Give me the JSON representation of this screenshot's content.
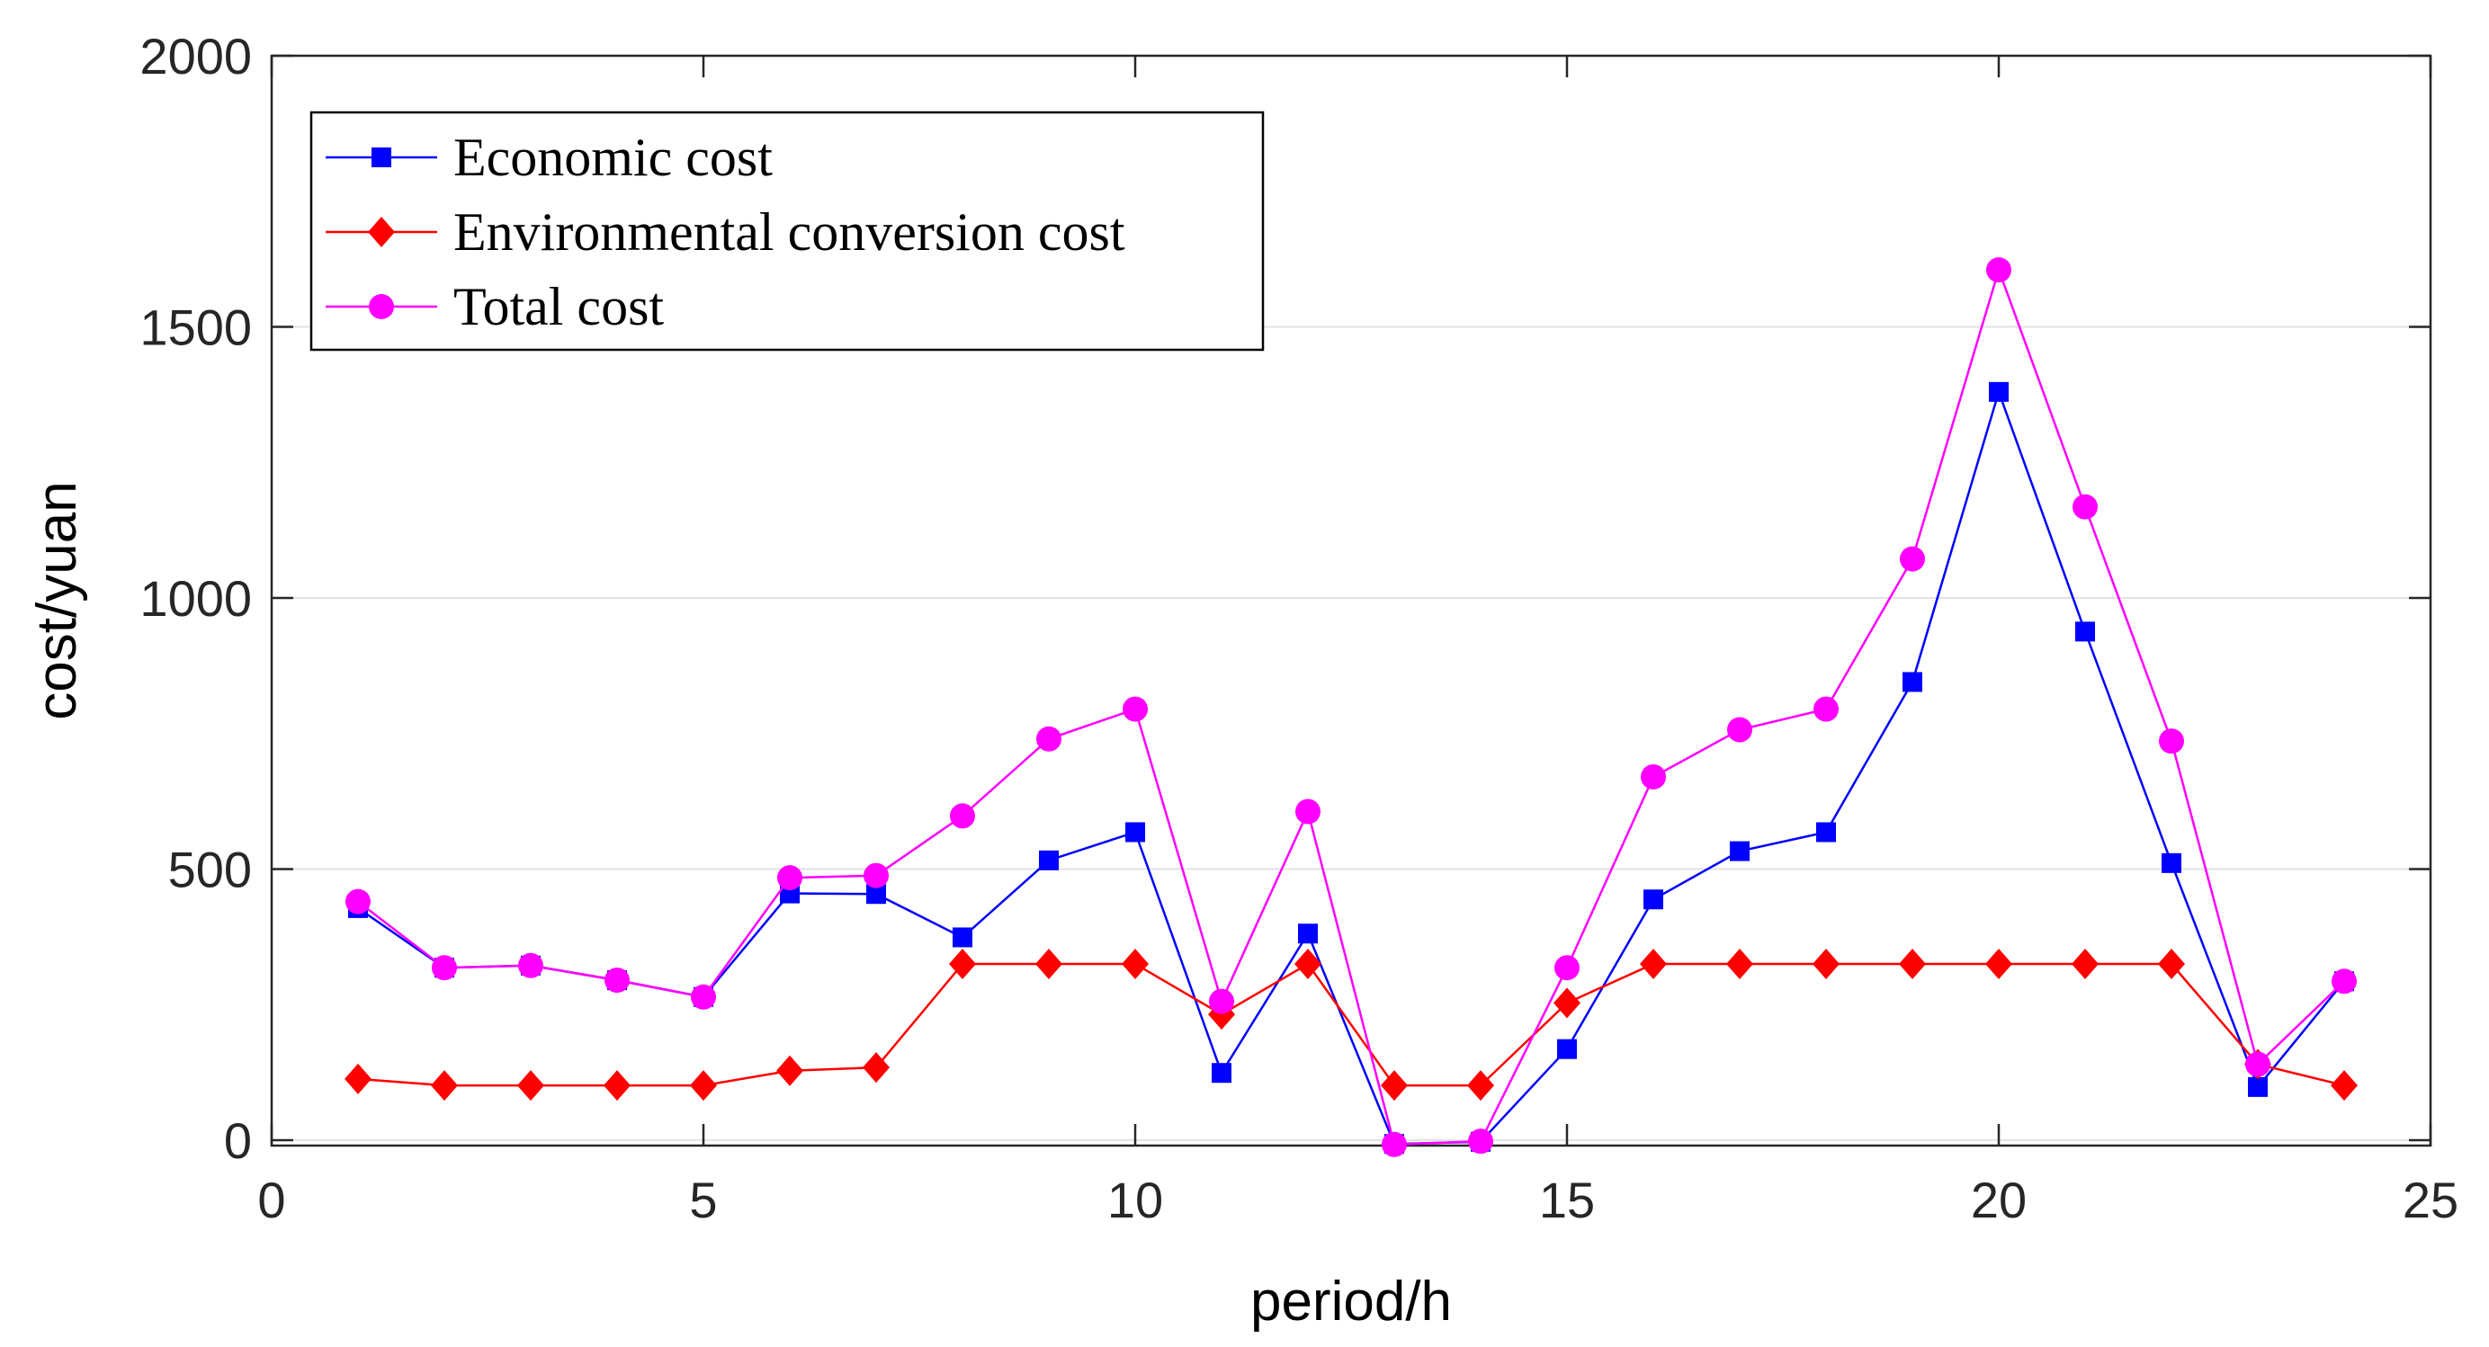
{
  "chart_data": {
    "type": "line",
    "xlabel": "period/h",
    "ylabel": "cost/yuan",
    "xlim": [
      0,
      25
    ],
    "ylim": [
      -10,
      2000
    ],
    "xticks": [
      0,
      5,
      10,
      15,
      20,
      25
    ],
    "yticks": [
      0,
      500,
      1000,
      1500,
      2000
    ],
    "grid": "y",
    "legend_position": "top-left",
    "x": [
      1,
      2,
      3,
      4,
      5,
      6,
      7,
      8,
      9,
      10,
      11,
      12,
      13,
      14,
      15,
      16,
      17,
      18,
      19,
      20,
      21,
      22,
      23,
      24
    ],
    "series": [
      {
        "name": "Economic cost",
        "color": "#0000ff",
        "marker": "square",
        "values": [
          428,
          318,
          322,
          295,
          264,
          455,
          454,
          374,
          516,
          568,
          124,
          381,
          -7,
          -3,
          168,
          444,
          533,
          568,
          845,
          1380,
          938,
          511,
          98,
          293
        ]
      },
      {
        "name": "Environmental conversion cost",
        "color": "#ff0000",
        "marker": "diamond",
        "values": [
          113,
          101,
          101,
          101,
          101,
          128,
          134,
          325,
          325,
          325,
          232,
          325,
          101,
          101,
          253,
          325,
          325,
          325,
          325,
          325,
          325,
          325,
          140,
          101
        ]
      },
      {
        "name": "Total cost",
        "color": "#ff00ff",
        "marker": "circle",
        "values": [
          440,
          318,
          322,
          295,
          264,
          484,
          488,
          598,
          740,
          795,
          256,
          606,
          -8,
          -2,
          318,
          670,
          757,
          795,
          1072,
          1605,
          1168,
          736,
          140,
          293
        ]
      }
    ]
  }
}
